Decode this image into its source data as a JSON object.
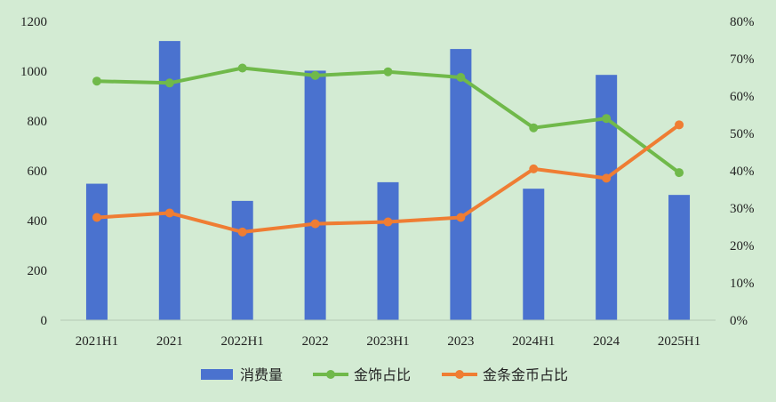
{
  "chart_data": {
    "type": "bar+line",
    "categories": [
      "2021H1",
      "2021",
      "2022H1",
      "2022",
      "2023H1",
      "2023",
      "2024H1",
      "2024",
      "2025H1"
    ],
    "bar_series": {
      "name": "消费量",
      "axis": "left",
      "color": "#4a72cf",
      "values": [
        548,
        1121,
        479,
        1002,
        554,
        1089,
        528,
        985,
        503
      ]
    },
    "line_series": [
      {
        "name": "金饰占比",
        "axis": "right",
        "color": "#70b94a",
        "values": [
          0.64,
          0.635,
          0.675,
          0.655,
          0.665,
          0.65,
          0.515,
          0.54,
          0.395
        ]
      },
      {
        "name": "金条金币占比",
        "axis": "right",
        "color": "#ef7d33",
        "values": [
          0.275,
          0.287,
          0.236,
          0.258,
          0.263,
          0.275,
          0.405,
          0.38,
          0.523
        ]
      }
    ],
    "left_axis": {
      "ylim": [
        0,
        1200
      ],
      "ticks": [
        0,
        200,
        400,
        600,
        800,
        1000,
        1200
      ],
      "tick_labels": [
        "0",
        "200",
        "400",
        "600",
        "800",
        "1000",
        "1200"
      ]
    },
    "right_axis": {
      "ylim": [
        0,
        0.8
      ],
      "ticks": [
        0,
        0.1,
        0.2,
        0.3,
        0.4,
        0.5,
        0.6,
        0.7,
        0.8
      ],
      "tick_labels": [
        "0%",
        "10%",
        "20%",
        "30%",
        "40%",
        "50%",
        "60%",
        "70%",
        "80%"
      ]
    },
    "grid": false,
    "legend_position": "bottom",
    "title": "",
    "xlabel": "",
    "ylabel": ""
  },
  "colors": {
    "background": "#d3ebd3",
    "axis_line": "#b5c9b5"
  }
}
